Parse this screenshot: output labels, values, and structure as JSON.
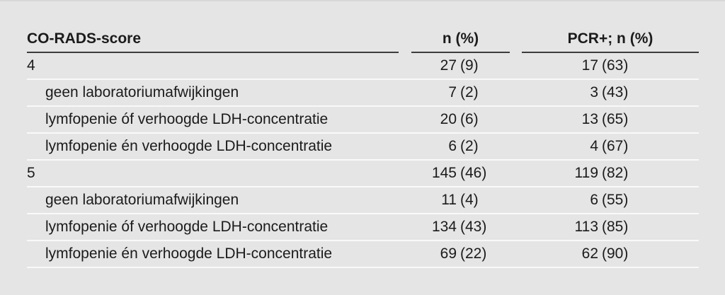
{
  "colors": {
    "background": "#e5e5e5",
    "text": "#1b1b1b",
    "header_rule": "#3d3d3d",
    "row_rule": "#f9f9f9",
    "top_edge": "#d8d8d8"
  },
  "table": {
    "columns": [
      {
        "label": "CO-RADS-score"
      },
      {
        "label": "n (%)"
      },
      {
        "label": "PCR+; n (%)"
      }
    ],
    "rows": [
      {
        "label": "4",
        "indent": false,
        "n": "27",
        "n_pct": "(9)",
        "pcr": "17",
        "pcr_pct": "(63)"
      },
      {
        "label": "geen laboratoriumafwijkingen",
        "indent": true,
        "n": "7",
        "n_pct": "(2)",
        "pcr": "3",
        "pcr_pct": "(43)"
      },
      {
        "label": "lymfopenie óf verhoogde LDH-concentratie",
        "indent": true,
        "n": "20",
        "n_pct": "(6)",
        "pcr": "13",
        "pcr_pct": "(65)"
      },
      {
        "label": "lymfopenie én verhoogde LDH-concentratie",
        "indent": true,
        "n": "6",
        "n_pct": "(2)",
        "pcr": "4",
        "pcr_pct": "(67)"
      },
      {
        "label": "5",
        "indent": false,
        "n": "145",
        "n_pct": "(46)",
        "pcr": "119",
        "pcr_pct": "(82)"
      },
      {
        "label": "geen laboratoriumafwijkingen",
        "indent": true,
        "n": "11",
        "n_pct": "(4)",
        "pcr": "6",
        "pcr_pct": "(55)"
      },
      {
        "label": "lymfopenie óf verhoogde LDH-concentratie",
        "indent": true,
        "n": "134",
        "n_pct": "(43)",
        "pcr": "113",
        "pcr_pct": "(85)"
      },
      {
        "label": "lymfopenie én verhoogde LDH-concentratie",
        "indent": true,
        "n": "69",
        "n_pct": "(22)",
        "pcr": "62",
        "pcr_pct": "(90)"
      }
    ]
  },
  "chart_data": {
    "type": "table",
    "title": "CO-RADS-score",
    "columns": [
      "CO-RADS-score",
      "n (%)",
      "PCR+; n (%)"
    ],
    "rows": [
      [
        "4",
        "27 (9)",
        "17 (63)"
      ],
      [
        "geen laboratoriumafwijkingen",
        "7 (2)",
        "3 (43)"
      ],
      [
        "lymfopenie óf verhoogde LDH-concentratie",
        "20 (6)",
        "13 (65)"
      ],
      [
        "lymfopenie én verhoogde LDH-concentratie",
        "6 (2)",
        "4 (67)"
      ],
      [
        "5",
        "145 (46)",
        "119 (82)"
      ],
      [
        "geen laboratoriumafwijkingen",
        "11 (4)",
        "6 (55)"
      ],
      [
        "lymfopenie óf verhoogde LDH-concentratie",
        "134 (43)",
        "113 (85)"
      ],
      [
        "lymfopenie én verhoogde LDH-concentratie",
        "69 (22)",
        "62 (90)"
      ]
    ]
  }
}
